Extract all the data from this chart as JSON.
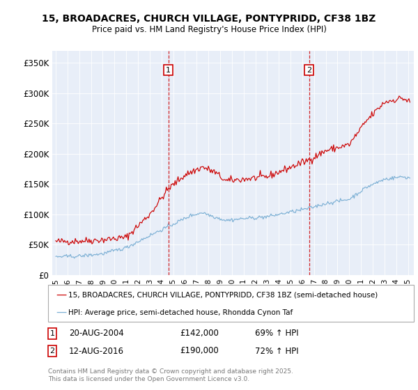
{
  "title": "15, BROADACRES, CHURCH VILLAGE, PONTYPRIDD, CF38 1BZ",
  "subtitle": "Price paid vs. HM Land Registry's House Price Index (HPI)",
  "red_label": "15, BROADACRES, CHURCH VILLAGE, PONTYPRIDD, CF38 1BZ (semi-detached house)",
  "blue_label": "HPI: Average price, semi-detached house, Rhondda Cynon Taf",
  "marker1_num": "1",
  "marker1_date": "20-AUG-2004",
  "marker1_price": "£142,000",
  "marker1_hpi": "69% ↑ HPI",
  "marker1_x": 2004.583,
  "marker2_num": "2",
  "marker2_date": "12-AUG-2016",
  "marker2_price": "£190,000",
  "marker2_hpi": "72% ↑ HPI",
  "marker2_x": 2016.583,
  "footer": "Contains HM Land Registry data © Crown copyright and database right 2025.\nThis data is licensed under the Open Government Licence v3.0.",
  "red_color": "#cc0000",
  "blue_color": "#7bafd4",
  "background_color": "#e8eef8",
  "ylim": [
    0,
    370000
  ],
  "yticks": [
    0,
    50000,
    100000,
    150000,
    200000,
    250000,
    300000,
    350000
  ],
  "xlim_start": 1994.7,
  "xlim_end": 2025.5
}
